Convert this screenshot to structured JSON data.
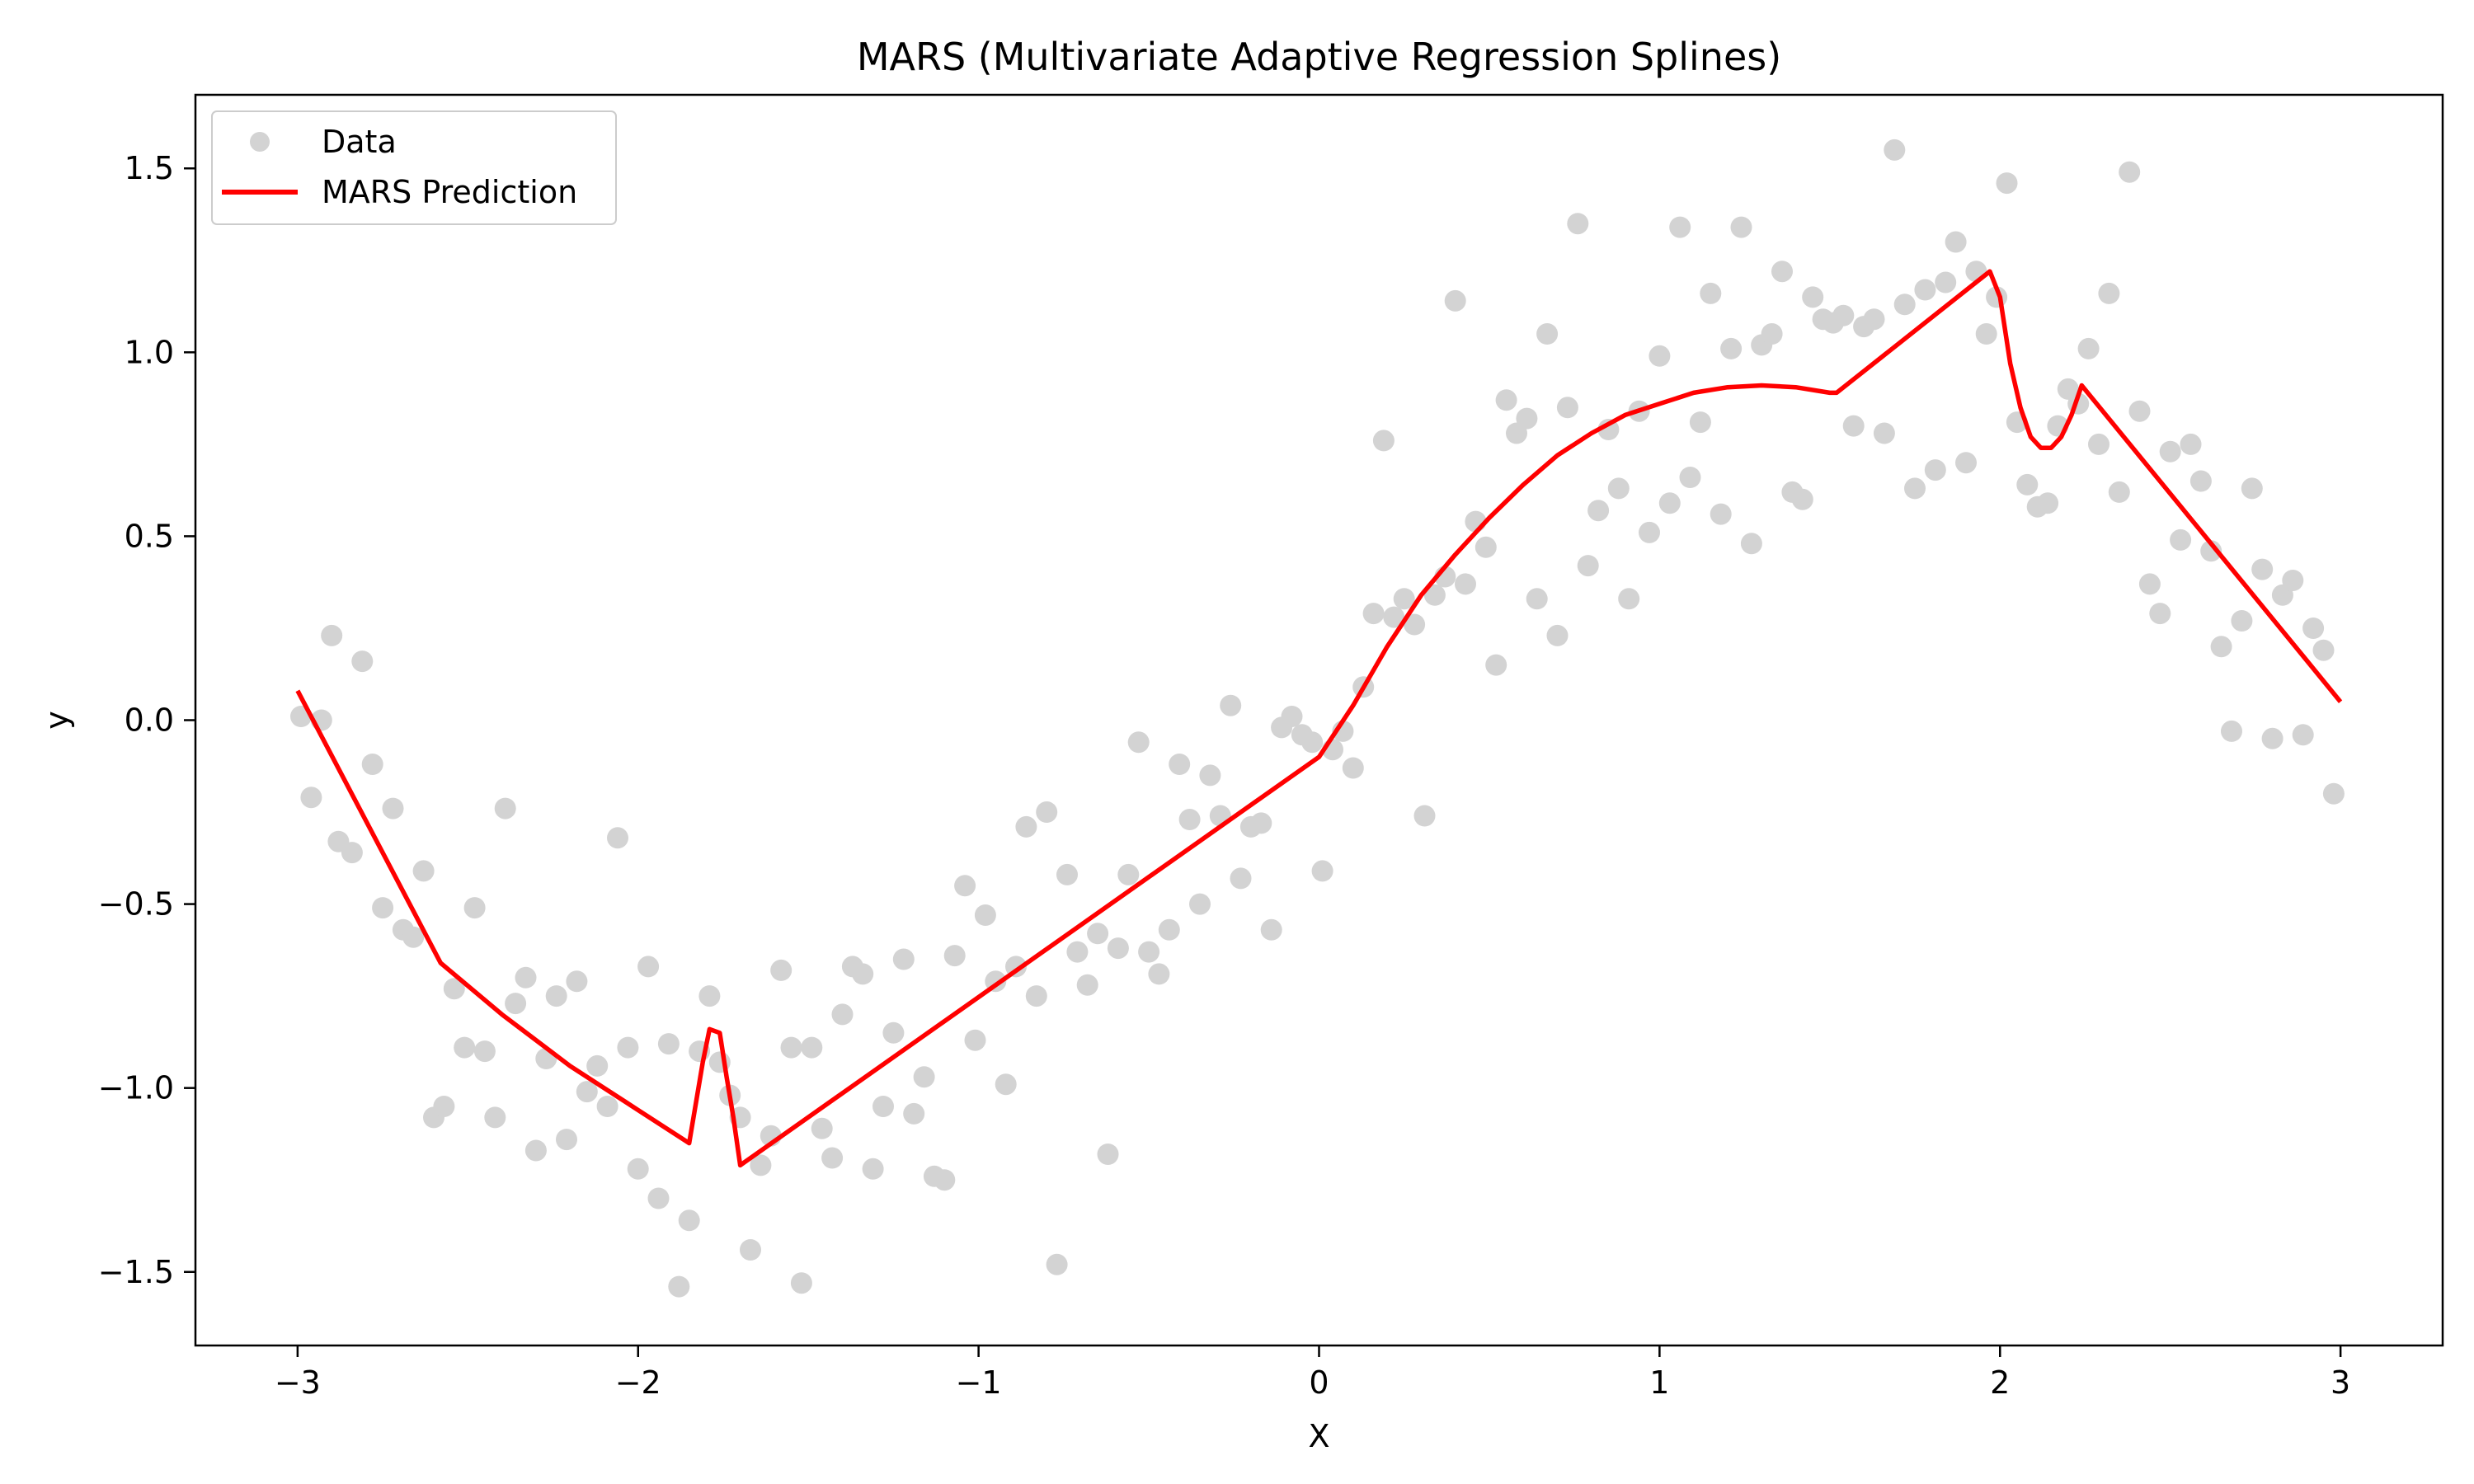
{
  "chart_data": {
    "type": "scatter",
    "title": "MARS (Multivariate Adaptive Regression Splines)",
    "xlabel": "X",
    "ylabel": "y",
    "xlim": [
      -3.3,
      3.3
    ],
    "ylim": [
      -1.7,
      1.7
    ],
    "x_ticks": [
      -3,
      -2,
      -1,
      0,
      1,
      2,
      3
    ],
    "x_tick_labels": [
      "−3",
      "−2",
      "−1",
      "0",
      "1",
      "2",
      "3"
    ],
    "y_ticks": [
      -1.5,
      -1.0,
      -0.5,
      0.0,
      0.5,
      1.0,
      1.5
    ],
    "y_tick_labels": [
      "−1.5",
      "−1.0",
      "−0.5",
      "0.0",
      "0.5",
      "1.0",
      "1.5"
    ],
    "grid": false,
    "legend_position": "top-left",
    "series": [
      {
        "name": "Data",
        "kind": "scatter",
        "color": "#d3d3d3",
        "points": [
          [
            -2.99,
            0.01
          ],
          [
            -2.96,
            -0.21
          ],
          [
            -2.93,
            0.0
          ],
          [
            -2.9,
            0.23
          ],
          [
            -2.88,
            -0.33
          ],
          [
            -2.84,
            -0.36
          ],
          [
            -2.81,
            0.16
          ],
          [
            -2.78,
            -0.12
          ],
          [
            -2.75,
            -0.51
          ],
          [
            -2.72,
            -0.24
          ],
          [
            -2.69,
            -0.57
          ],
          [
            -2.66,
            -0.59
          ],
          [
            -2.63,
            -0.41
          ],
          [
            -2.6,
            -1.08
          ],
          [
            -2.57,
            -1.05
          ],
          [
            -2.54,
            -0.73
          ],
          [
            -2.51,
            -0.89
          ],
          [
            -2.48,
            -0.51
          ],
          [
            -2.45,
            -0.9
          ],
          [
            -2.42,
            -1.08
          ],
          [
            -2.39,
            -0.24
          ],
          [
            -2.36,
            -0.77
          ],
          [
            -2.33,
            -0.7
          ],
          [
            -2.3,
            -1.17
          ],
          [
            -2.27,
            -0.92
          ],
          [
            -2.24,
            -0.75
          ],
          [
            -2.21,
            -1.14
          ],
          [
            -2.18,
            -0.71
          ],
          [
            -2.15,
            -1.01
          ],
          [
            -2.12,
            -0.94
          ],
          [
            -2.09,
            -1.05
          ],
          [
            -2.06,
            -0.32
          ],
          [
            -2.03,
            -0.89
          ],
          [
            -2.0,
            -1.22
          ],
          [
            -1.97,
            -0.67
          ],
          [
            -1.94,
            -1.3
          ],
          [
            -1.91,
            -0.88
          ],
          [
            -1.88,
            -1.54
          ],
          [
            -1.85,
            -1.36
          ],
          [
            -1.82,
            -0.9
          ],
          [
            -1.79,
            -0.75
          ],
          [
            -1.76,
            -0.93
          ],
          [
            -1.73,
            -1.02
          ],
          [
            -1.7,
            -1.08
          ],
          [
            -1.67,
            -1.44
          ],
          [
            -1.64,
            -1.21
          ],
          [
            -1.61,
            -1.13
          ],
          [
            -1.58,
            -0.68
          ],
          [
            -1.55,
            -0.89
          ],
          [
            -1.52,
            -1.53
          ],
          [
            -1.49,
            -0.89
          ],
          [
            -1.46,
            -1.11
          ],
          [
            -1.43,
            -1.19
          ],
          [
            -1.4,
            -0.8
          ],
          [
            -1.37,
            -0.67
          ],
          [
            -1.34,
            -0.69
          ],
          [
            -1.31,
            -1.22
          ],
          [
            -1.28,
            -1.05
          ],
          [
            -1.25,
            -0.85
          ],
          [
            -1.22,
            -0.65
          ],
          [
            -1.19,
            -1.07
          ],
          [
            -1.16,
            -0.97
          ],
          [
            -1.13,
            -1.24
          ],
          [
            -1.1,
            -1.25
          ],
          [
            -1.07,
            -0.64
          ],
          [
            -1.04,
            -0.45
          ],
          [
            -1.01,
            -0.87
          ],
          [
            -0.98,
            -0.53
          ],
          [
            -0.95,
            -0.71
          ],
          [
            -0.92,
            -0.99
          ],
          [
            -0.89,
            -0.67
          ],
          [
            -0.86,
            -0.29
          ],
          [
            -0.83,
            -0.75
          ],
          [
            -0.8,
            -0.25
          ],
          [
            -0.77,
            -1.48
          ],
          [
            -0.74,
            -0.42
          ],
          [
            -0.71,
            -0.63
          ],
          [
            -0.68,
            -0.72
          ],
          [
            -0.65,
            -0.58
          ],
          [
            -0.62,
            -1.18
          ],
          [
            -0.59,
            -0.62
          ],
          [
            -0.56,
            -0.42
          ],
          [
            -0.53,
            -0.06
          ],
          [
            -0.5,
            -0.63
          ],
          [
            -0.47,
            -0.69
          ],
          [
            -0.44,
            -0.57
          ],
          [
            -0.41,
            -0.12
          ],
          [
            -0.38,
            -0.27
          ],
          [
            -0.35,
            -0.5
          ],
          [
            -0.32,
            -0.15
          ],
          [
            -0.29,
            -0.26
          ],
          [
            -0.26,
            0.04
          ],
          [
            -0.23,
            -0.43
          ],
          [
            -0.2,
            -0.29
          ],
          [
            -0.17,
            -0.28
          ],
          [
            -0.14,
            -0.57
          ],
          [
            -0.11,
            -0.02
          ],
          [
            -0.08,
            0.01
          ],
          [
            -0.05,
            -0.04
          ],
          [
            -0.02,
            -0.06
          ],
          [
            0.01,
            -0.41
          ],
          [
            0.04,
            -0.08
          ],
          [
            0.07,
            -0.03
          ],
          [
            0.1,
            -0.13
          ],
          [
            0.13,
            0.09
          ],
          [
            0.16,
            0.29
          ],
          [
            0.19,
            0.76
          ],
          [
            0.22,
            0.28
          ],
          [
            0.25,
            0.33
          ],
          [
            0.28,
            0.26
          ],
          [
            0.31,
            -0.26
          ],
          [
            0.34,
            0.34
          ],
          [
            0.37,
            0.39
          ],
          [
            0.4,
            1.14
          ],
          [
            0.43,
            0.37
          ],
          [
            0.46,
            0.54
          ],
          [
            0.49,
            0.47
          ],
          [
            0.52,
            0.15
          ],
          [
            0.55,
            0.87
          ],
          [
            0.58,
            0.78
          ],
          [
            0.61,
            0.82
          ],
          [
            0.64,
            0.33
          ],
          [
            0.67,
            1.05
          ],
          [
            0.7,
            0.23
          ],
          [
            0.73,
            0.85
          ],
          [
            0.76,
            1.35
          ],
          [
            0.79,
            0.42
          ],
          [
            0.82,
            0.57
          ],
          [
            0.85,
            0.79
          ],
          [
            0.88,
            0.63
          ],
          [
            0.91,
            0.33
          ],
          [
            0.94,
            0.84
          ],
          [
            0.97,
            0.51
          ],
          [
            1.0,
            0.99
          ],
          [
            1.03,
            0.59
          ],
          [
            1.06,
            1.34
          ],
          [
            1.09,
            0.66
          ],
          [
            1.12,
            0.81
          ],
          [
            1.15,
            1.16
          ],
          [
            1.18,
            0.56
          ],
          [
            1.21,
            1.01
          ],
          [
            1.24,
            1.34
          ],
          [
            1.27,
            0.48
          ],
          [
            1.3,
            1.02
          ],
          [
            1.33,
            1.05
          ],
          [
            1.36,
            1.22
          ],
          [
            1.39,
            0.62
          ],
          [
            1.42,
            0.6
          ],
          [
            1.45,
            1.15
          ],
          [
            1.48,
            1.09
          ],
          [
            1.51,
            1.08
          ],
          [
            1.54,
            1.1
          ],
          [
            1.57,
            0.8
          ],
          [
            1.6,
            1.07
          ],
          [
            1.63,
            1.09
          ],
          [
            1.66,
            0.78
          ],
          [
            1.69,
            1.55
          ],
          [
            1.72,
            1.13
          ],
          [
            1.75,
            0.63
          ],
          [
            1.78,
            1.17
          ],
          [
            1.81,
            0.68
          ],
          [
            1.84,
            1.19
          ],
          [
            1.87,
            1.3
          ],
          [
            1.9,
            0.7
          ],
          [
            1.93,
            1.22
          ],
          [
            1.96,
            1.05
          ],
          [
            1.99,
            1.15
          ],
          [
            2.02,
            1.46
          ],
          [
            2.05,
            0.81
          ],
          [
            2.08,
            0.64
          ],
          [
            2.11,
            0.58
          ],
          [
            2.14,
            0.59
          ],
          [
            2.17,
            0.8
          ],
          [
            2.2,
            0.9
          ],
          [
            2.23,
            0.86
          ],
          [
            2.26,
            1.01
          ],
          [
            2.29,
            0.75
          ],
          [
            2.32,
            1.16
          ],
          [
            2.35,
            0.62
          ],
          [
            2.38,
            1.49
          ],
          [
            2.41,
            0.84
          ],
          [
            2.44,
            0.37
          ],
          [
            2.47,
            0.29
          ],
          [
            2.5,
            0.73
          ],
          [
            2.53,
            0.49
          ],
          [
            2.56,
            0.75
          ],
          [
            2.59,
            0.65
          ],
          [
            2.62,
            0.46
          ],
          [
            2.65,
            0.2
          ],
          [
            2.68,
            -0.03
          ],
          [
            2.71,
            0.27
          ],
          [
            2.74,
            0.63
          ],
          [
            2.77,
            0.41
          ],
          [
            2.8,
            -0.05
          ],
          [
            2.83,
            0.34
          ],
          [
            2.86,
            0.38
          ],
          [
            2.89,
            -0.04
          ],
          [
            2.92,
            0.25
          ],
          [
            2.95,
            0.19
          ],
          [
            2.98,
            -0.2
          ]
        ]
      },
      {
        "name": "MARS Prediction",
        "kind": "line",
        "color": "#ff0000",
        "points": [
          [
            -3.0,
            0.08
          ],
          [
            -2.58,
            -0.66
          ],
          [
            -2.4,
            -0.8
          ],
          [
            -2.2,
            -0.94
          ],
          [
            -2.0,
            -1.06
          ],
          [
            -1.85,
            -1.15
          ],
          [
            -1.81,
            -0.93
          ],
          [
            -1.79,
            -0.84
          ],
          [
            -1.76,
            -0.85
          ],
          [
            -1.74,
            -0.97
          ],
          [
            -1.72,
            -1.08
          ],
          [
            -1.7,
            -1.21
          ],
          [
            0.0,
            -0.1
          ],
          [
            0.1,
            0.04
          ],
          [
            0.2,
            0.2
          ],
          [
            0.3,
            0.34
          ],
          [
            0.4,
            0.45
          ],
          [
            0.5,
            0.55
          ],
          [
            0.6,
            0.64
          ],
          [
            0.7,
            0.72
          ],
          [
            0.8,
            0.78
          ],
          [
            0.9,
            0.83
          ],
          [
            1.0,
            0.86
          ],
          [
            1.1,
            0.89
          ],
          [
            1.2,
            0.905
          ],
          [
            1.3,
            0.91
          ],
          [
            1.4,
            0.905
          ],
          [
            1.5,
            0.89
          ],
          [
            1.52,
            0.89
          ],
          [
            1.97,
            1.22
          ],
          [
            2.0,
            1.15
          ],
          [
            2.03,
            0.97
          ],
          [
            2.06,
            0.85
          ],
          [
            2.09,
            0.77
          ],
          [
            2.12,
            0.74
          ],
          [
            2.15,
            0.74
          ],
          [
            2.18,
            0.77
          ],
          [
            2.21,
            0.83
          ],
          [
            2.24,
            0.91
          ],
          [
            3.0,
            0.05
          ]
        ]
      }
    ]
  }
}
